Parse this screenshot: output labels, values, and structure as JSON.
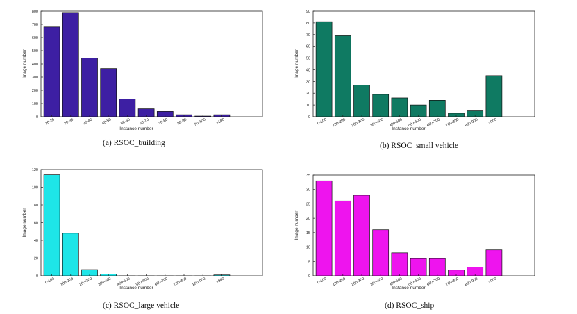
{
  "chart_data": [
    {
      "type": "bar",
      "caption": "(a) RSOC_building",
      "ylabel": "Image number",
      "xlabel": "Instance number",
      "color": "#3d1fa3",
      "ylim": [
        0,
        800
      ],
      "yticks": [
        "0",
        "100",
        "200",
        "300",
        "400",
        "500",
        "600",
        "700",
        "800"
      ],
      "categories": [
        "10-20",
        "20-30",
        "30-40",
        "40-50",
        "50-60",
        "60-70",
        "70-80",
        "80-90",
        "90-100",
        ">100"
      ],
      "values": [
        680,
        790,
        445,
        365,
        135,
        60,
        40,
        15,
        5,
        15
      ]
    },
    {
      "type": "bar",
      "caption": "(b) RSOC_small vehicle",
      "ylabel": "Image number",
      "xlabel": "Instance number",
      "color": "#0f7a62",
      "ylim": [
        0,
        90
      ],
      "yticks": [
        "0",
        "10",
        "20",
        "30",
        "40",
        "50",
        "60",
        "70",
        "80",
        "90"
      ],
      "categories": [
        "0-100",
        "100-200",
        "200-300",
        "300-400",
        "400-500",
        "500-600",
        "600-700",
        "700-800",
        "800-900",
        ">900"
      ],
      "values": [
        81,
        69,
        27,
        19,
        16,
        10,
        14,
        3,
        5,
        35
      ]
    },
    {
      "type": "bar",
      "caption": "(c) RSOC_large vehicle",
      "ylabel": "Image number",
      "xlabel": "Instance number",
      "color": "#1ee5e8",
      "ylim": [
        0,
        120
      ],
      "yticks": [
        "0",
        "20",
        "40",
        "60",
        "80",
        "100",
        "120"
      ],
      "categories": [
        "0-100",
        "100-200",
        "200-300",
        "300-400",
        "400-500",
        "500-600",
        "600-700",
        "700-800",
        "800-900",
        ">900"
      ],
      "values": [
        114,
        48,
        7,
        2,
        0,
        0,
        0,
        0,
        0,
        1
      ]
    },
    {
      "type": "bar",
      "caption": "(d) RSOC_ship",
      "ylabel": "Image number",
      "xlabel": "Instance number",
      "color": "#ee14ee",
      "ylim": [
        0,
        35
      ],
      "yticks": [
        "0",
        "5",
        "10",
        "15",
        "20",
        "25",
        "30",
        "35"
      ],
      "categories": [
        "0-100",
        "100-200",
        "200-300",
        "300-400",
        "400-500",
        "500-600",
        "600-700",
        "700-800",
        "800-900",
        ">900"
      ],
      "values": [
        33,
        26,
        28,
        16,
        8,
        6,
        6,
        2,
        3,
        9
      ]
    }
  ]
}
